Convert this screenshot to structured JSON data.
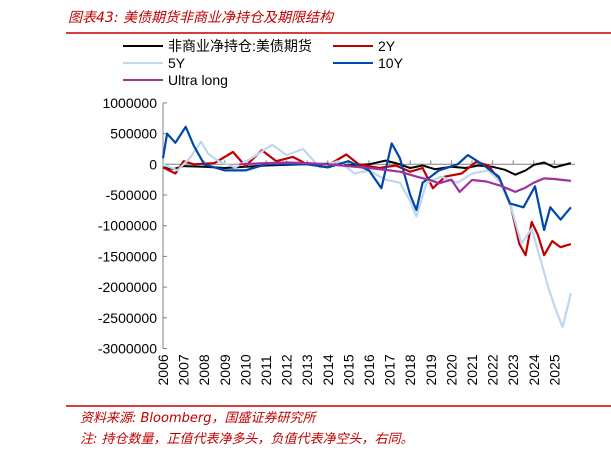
{
  "header": {
    "title": "图表43:  美债期货非商业净持仓及期限结构"
  },
  "footer": {
    "source": "资料来源:  Bloomberg，国盛证券研究所",
    "note": "注:  持仓数量，正值代表净多头，负值代表净空头，右同。"
  },
  "chart_data": {
    "type": "line",
    "title": "",
    "xlabel": "",
    "ylabel": "",
    "xlim": [
      2006,
      2026
    ],
    "ylim": [
      -3000000,
      1000000
    ],
    "x_ticks": [
      "2006",
      "2007",
      "2008",
      "2009",
      "2010",
      "2011",
      "2012",
      "2013",
      "2014",
      "2015",
      "2016",
      "2017",
      "2018",
      "2019",
      "2020",
      "2021",
      "2022",
      "2023",
      "2024",
      "2025"
    ],
    "y_ticks": [
      "1000000",
      "500000",
      "0",
      "-500000",
      "-1000000",
      "-1500000",
      "-2000000",
      "-2500000",
      "-3000000"
    ],
    "y_tick_values": [
      1000000,
      500000,
      0,
      -500000,
      -1000000,
      -1500000,
      -2000000,
      -2500000,
      -3000000
    ],
    "grid": false,
    "legend_position": "top",
    "series": [
      {
        "name": "非商业净持仓:美债期货",
        "color": "#000000",
        "x": [
          2006,
          2006.5,
          2007,
          2008,
          2009,
          2010,
          2011,
          2012,
          2013,
          2014,
          2015,
          2016,
          2016.8,
          2017.3,
          2018,
          2018.6,
          2019.2,
          2020,
          2020.7,
          2021.3,
          2022,
          2022.6,
          2023.1,
          2023.6,
          2024,
          2024.5,
          2025,
          2025.8
        ],
        "y": [
          -50000,
          -80000,
          -30000,
          -40000,
          -60000,
          -40000,
          -20000,
          -10000,
          0,
          10000,
          -20000,
          0,
          60000,
          20000,
          -60000,
          -20000,
          -80000,
          -40000,
          -60000,
          -20000,
          -40000,
          -90000,
          -170000,
          -100000,
          -10000,
          30000,
          -50000,
          20000
        ]
      },
      {
        "name": "2Y",
        "color": "#c00000",
        "x": [
          2006,
          2006.6,
          2007,
          2007.5,
          2008.5,
          2009.4,
          2010,
          2010.8,
          2011.5,
          2012.3,
          2013,
          2014,
          2014.9,
          2015.5,
          2016.5,
          2017.3,
          2018,
          2018.6,
          2019.1,
          2019.7,
          2020.5,
          2021.2,
          2021.8,
          2022.4,
          2022.9,
          2023.3,
          2023.6,
          2023.9,
          2024.2,
          2024.5,
          2024.9,
          2025.3,
          2025.8
        ],
        "y": [
          -50000,
          -150000,
          50000,
          0,
          20000,
          200000,
          -30000,
          230000,
          50000,
          120000,
          0,
          -20000,
          160000,
          0,
          -60000,
          -20000,
          -120000,
          -60000,
          -390000,
          -200000,
          -150000,
          40000,
          -20000,
          -300000,
          -700000,
          -1300000,
          -1480000,
          -940000,
          -1150000,
          -1480000,
          -1250000,
          -1350000,
          -1300000
        ]
      },
      {
        "name": "5Y",
        "color": "#bdd7ee",
        "x": [
          2006,
          2006.7,
          2007.3,
          2007.85,
          2008.2,
          2008.7,
          2009.5,
          2010.3,
          2011.3,
          2012,
          2012.8,
          2013.6,
          2014.5,
          2015.3,
          2016,
          2016.8,
          2017.5,
          2018,
          2018.3,
          2018.8,
          2019.5,
          2020.3,
          2021,
          2021.8,
          2022.4,
          2022.9,
          2023.4,
          2023.9,
          2024.2,
          2024.7,
          2025.1,
          2025.4,
          2025.8
        ],
        "y": [
          0,
          -100000,
          100000,
          370000,
          170000,
          50000,
          -50000,
          100000,
          320000,
          150000,
          250000,
          -50000,
          50000,
          -150000,
          -100000,
          -250000,
          -300000,
          -600000,
          -850000,
          -300000,
          -200000,
          -300000,
          -150000,
          -100000,
          -300000,
          -700000,
          -1290000,
          -1050000,
          -1400000,
          -2000000,
          -2400000,
          -2650000,
          -2100000
        ]
      },
      {
        "name": "10Y",
        "color": "#0047ab",
        "x": [
          2006,
          2006.2,
          2006.6,
          2007.1,
          2007.5,
          2008,
          2009,
          2010,
          2011,
          2012,
          2013,
          2014,
          2015,
          2016,
          2016.6,
          2017.1,
          2017.5,
          2018,
          2018.3,
          2018.6,
          2019.4,
          2020.3,
          2020.8,
          2021.5,
          2022.3,
          2022.85,
          2023.5,
          2024.06,
          2024.5,
          2024.8,
          2025.3,
          2025.8
        ],
        "y": [
          100000,
          500000,
          350000,
          610000,
          300000,
          0,
          -100000,
          -100000,
          0,
          0,
          0,
          -50000,
          50000,
          -100000,
          -390000,
          340000,
          100000,
          -500000,
          -745000,
          -300000,
          -100000,
          0,
          150000,
          0,
          -200000,
          -640000,
          -700000,
          -360000,
          -1070000,
          -700000,
          -900000,
          -700000
        ]
      },
      {
        "name": "Ultra long",
        "color": "#a0329b",
        "x": [
          2009.7,
          2011,
          2012,
          2013,
          2014,
          2015,
          2016,
          2017,
          2017.5,
          2018.3,
          2019,
          2019.4,
          2020,
          2020.4,
          2021,
          2021.7,
          2022.4,
          2023.1,
          2023.6,
          2024,
          2024.5,
          2025,
          2025.8
        ],
        "y": [
          0,
          20000,
          30000,
          20000,
          0,
          -30000,
          -60000,
          -100000,
          -120000,
          -200000,
          -260000,
          -310000,
          -250000,
          -450000,
          -255000,
          -280000,
          -350000,
          -450000,
          -380000,
          -300000,
          -230000,
          -240000,
          -270000
        ]
      }
    ]
  }
}
